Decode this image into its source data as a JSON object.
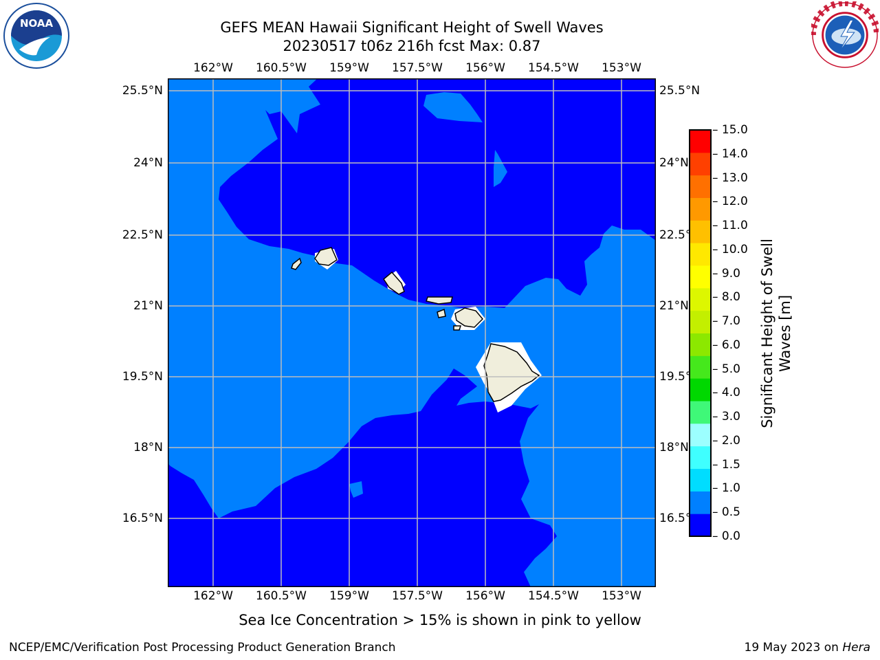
{
  "header": {
    "title_line1": "GEFS MEAN Hawaii Significant Height of Swell Waves",
    "title_line2": "20230517 t06z 216h fcst   Max: 0.87"
  },
  "map": {
    "lon_labels": [
      "162°W",
      "160.5°W",
      "159°W",
      "157.5°W",
      "156°W",
      "154.5°W",
      "153°W"
    ],
    "lat_labels": [
      "25.5°N",
      "24°N",
      "22.5°N",
      "21°N",
      "19.5°N",
      "18°N",
      "16.5°N"
    ],
    "colors": {
      "dark_blue": "#0000ff",
      "light_blue": "#0080ff",
      "land": "#f0eedc",
      "grid": "#bdbdbd"
    },
    "regions": [
      "swell 0.0–0.5 m (deep blue)",
      "swell 0.5–1.0 m (medium blue)",
      "Hawaiian Islands (land)"
    ]
  },
  "colorbar": {
    "ticks": [
      "15.0",
      "14.0",
      "13.0",
      "12.0",
      "11.0",
      "10.0",
      "9.0",
      "8.0",
      "7.0",
      "6.0",
      "5.0",
      "4.0",
      "3.0",
      "2.0",
      "1.5",
      "1.0",
      "0.5",
      "0.0"
    ],
    "colors": [
      "#0000ff",
      "#0080ff",
      "#00ddff",
      "#3fffff",
      "#9cffff",
      "#3ff878",
      "#00d800",
      "#45e81c",
      "#8ce800",
      "#c3ef00",
      "#ddf700",
      "#ffff00",
      "#ffe800",
      "#ffc000",
      "#ff9900",
      "#ff7000",
      "#ff4000",
      "#ff0000"
    ],
    "label_line1": "Significant Height of Swell",
    "label_line2": "Waves [m]"
  },
  "note": "Sea Ice Concentration > 15% is shown in pink to yellow",
  "footer": {
    "left": "NCEP/EMC/Verification Post Processing Product Generation Branch",
    "right_prefix": "19 May 2023 on ",
    "right_host": "Hera"
  },
  "logos": {
    "left": "noaa-logo",
    "right": "national-weather-service-logo"
  }
}
